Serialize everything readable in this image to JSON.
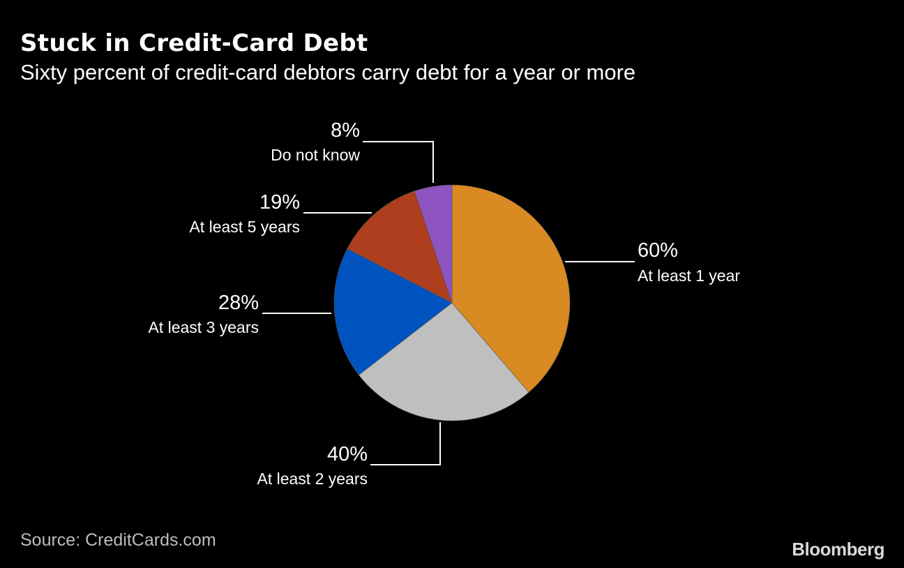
{
  "chart_data": {
    "type": "pie",
    "title": "Stuck in Credit-Card Debt",
    "subtitle": "Sixty percent of credit-card debtors carry debt for a year or more",
    "slices": [
      {
        "label": "At least 1 year",
        "value": 60,
        "value_label": "60%",
        "color": "#D98A22"
      },
      {
        "label": "At least 2 years",
        "value": 40,
        "value_label": "40%",
        "color": "#BFBFBF"
      },
      {
        "label": "At least 3 years",
        "value": 28,
        "value_label": "28%",
        "color": "#0052BE"
      },
      {
        "label": "At least 5 years",
        "value": 19,
        "value_label": "19%",
        "color": "#AE3E1E"
      },
      {
        "label": "Do not know",
        "value": 8,
        "value_label": "8%",
        "color": "#8E55C0"
      }
    ],
    "source": "Source: CreditCards.com"
  },
  "branding": {
    "logo": "Bloomberg"
  }
}
